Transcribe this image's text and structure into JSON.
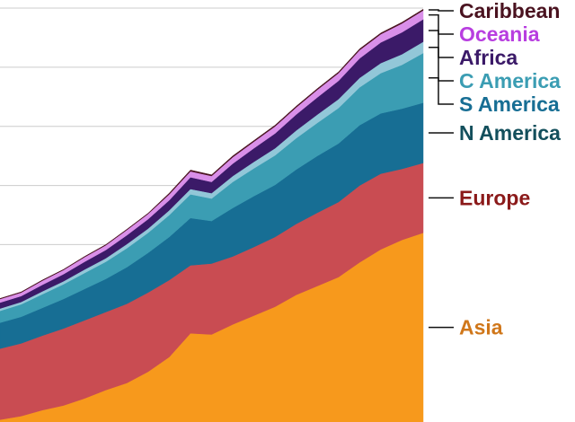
{
  "chart_data": {
    "type": "area",
    "stacked": true,
    "title": "",
    "xlabel": "",
    "ylabel": "",
    "x": [
      0,
      1,
      2,
      3,
      4,
      5,
      6,
      7,
      8,
      9,
      10,
      11,
      12,
      13,
      14,
      15,
      16,
      17,
      18,
      19,
      20
    ],
    "ylim": [
      0,
      7
    ],
    "grid": true,
    "gridlines": [
      1,
      2,
      3,
      4,
      5,
      6,
      7
    ],
    "series": [
      {
        "name": "Asia",
        "color": "#f7991c",
        "values": [
          0.04,
          0.1,
          0.2,
          0.28,
          0.4,
          0.54,
          0.66,
          0.85,
          1.1,
          1.5,
          1.48,
          1.65,
          1.8,
          1.95,
          2.15,
          2.3,
          2.45,
          2.7,
          2.92,
          3.08,
          3.2
        ]
      },
      {
        "name": "Europe",
        "color": "#c94c52",
        "values": [
          1.2,
          1.23,
          1.26,
          1.3,
          1.32,
          1.32,
          1.34,
          1.34,
          1.3,
          1.15,
          1.2,
          1.15,
          1.16,
          1.18,
          1.2,
          1.24,
          1.27,
          1.3,
          1.28,
          1.2,
          1.18
        ]
      },
      {
        "name": "N America",
        "color": "#176e94",
        "values": [
          0.44,
          0.45,
          0.47,
          0.5,
          0.53,
          0.56,
          0.62,
          0.67,
          0.73,
          0.8,
          0.72,
          0.82,
          0.86,
          0.88,
          0.92,
          0.96,
          0.99,
          1.02,
          1.02,
          1.02,
          1.02
        ]
      },
      {
        "name": "S America",
        "color": "#3b9db3",
        "values": [
          0.2,
          0.21,
          0.23,
          0.25,
          0.27,
          0.29,
          0.32,
          0.34,
          0.37,
          0.4,
          0.38,
          0.44,
          0.47,
          0.5,
          0.53,
          0.56,
          0.6,
          0.64,
          0.68,
          0.74,
          0.84
        ]
      },
      {
        "name": "C America",
        "color": "#92c7d8",
        "values": [
          0.04,
          0.04,
          0.05,
          0.05,
          0.06,
          0.06,
          0.07,
          0.07,
          0.08,
          0.09,
          0.09,
          0.1,
          0.11,
          0.12,
          0.13,
          0.14,
          0.15,
          0.16,
          0.17,
          0.18,
          0.19
        ]
      },
      {
        "name": "Africa",
        "color": "#3b1a68",
        "values": [
          0.1,
          0.1,
          0.11,
          0.12,
          0.13,
          0.14,
          0.15,
          0.16,
          0.17,
          0.2,
          0.19,
          0.21,
          0.23,
          0.25,
          0.27,
          0.29,
          0.31,
          0.33,
          0.35,
          0.37,
          0.38
        ]
      },
      {
        "name": "Oceania",
        "color": "#d98fe9",
        "values": [
          0.06,
          0.06,
          0.07,
          0.07,
          0.08,
          0.08,
          0.09,
          0.09,
          0.1,
          0.1,
          0.1,
          0.11,
          0.11,
          0.12,
          0.12,
          0.13,
          0.13,
          0.14,
          0.14,
          0.15,
          0.15
        ]
      },
      {
        "name": "Caribbean",
        "color": "#4a1320",
        "values": [
          0.01,
          0.01,
          0.01,
          0.01,
          0.01,
          0.01,
          0.01,
          0.01,
          0.02,
          0.02,
          0.02,
          0.02,
          0.02,
          0.02,
          0.02,
          0.02,
          0.02,
          0.02,
          0.02,
          0.02,
          0.02
        ]
      }
    ],
    "legend": [
      {
        "name": "Caribbean",
        "label": "Caribbean",
        "color": "#4a1320"
      },
      {
        "name": "Oceania",
        "label": "Oceania",
        "color": "#b83ee0"
      },
      {
        "name": "Africa",
        "label": "Africa",
        "color": "#3b1a68"
      },
      {
        "name": "C America",
        "label": "C America",
        "color": "#3b9db3"
      },
      {
        "name": "S America",
        "label": "S America",
        "color": "#176e94"
      },
      {
        "name": "N America",
        "label": "N America",
        "color": "#134f5c"
      },
      {
        "name": "Europe",
        "label": "Europe",
        "color": "#8b1a1a"
      },
      {
        "name": "Asia",
        "label": "Asia",
        "color": "#d0771a"
      }
    ],
    "legend_placement": "right"
  }
}
